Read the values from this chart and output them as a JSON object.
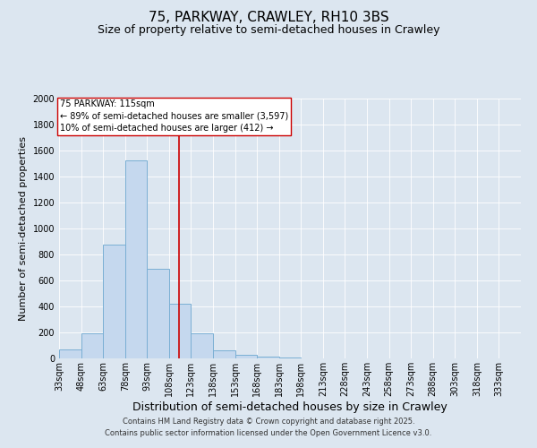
{
  "title": "75, PARKWAY, CRAWLEY, RH10 3BS",
  "subtitle": "Size of property relative to semi-detached houses in Crawley",
  "xlabel": "Distribution of semi-detached houses by size in Crawley",
  "ylabel": "Number of semi-detached properties",
  "bin_labels": [
    "33sqm",
    "48sqm",
    "63sqm",
    "78sqm",
    "93sqm",
    "108sqm",
    "123sqm",
    "138sqm",
    "153sqm",
    "168sqm",
    "183sqm",
    "198sqm",
    "213sqm",
    "228sqm",
    "243sqm",
    "258sqm",
    "273sqm",
    "288sqm",
    "303sqm",
    "318sqm",
    "333sqm"
  ],
  "bin_edges": [
    33,
    48,
    63,
    78,
    93,
    108,
    123,
    138,
    153,
    168,
    183,
    198,
    213,
    228,
    243,
    258,
    273,
    288,
    303,
    318,
    333,
    348
  ],
  "counts": [
    70,
    195,
    875,
    1525,
    690,
    420,
    195,
    60,
    30,
    15,
    10,
    0,
    0,
    0,
    0,
    0,
    0,
    0,
    0,
    0,
    0
  ],
  "bar_color": "#c5d8ee",
  "bar_edge_color": "#7aafd4",
  "property_size": 115,
  "vline_color": "#cc0000",
  "annotation_text": "75 PARKWAY: 115sqm\n← 89% of semi-detached houses are smaller (3,597)\n10% of semi-detached houses are larger (412) →",
  "annotation_box_color": "#ffffff",
  "annotation_box_edge": "#cc0000",
  "ylim": [
    0,
    2000
  ],
  "yticks": [
    0,
    200,
    400,
    600,
    800,
    1000,
    1200,
    1400,
    1600,
    1800,
    2000
  ],
  "background_color": "#dce6f0",
  "plot_bg_color": "#dce6f0",
  "grid_color": "#ffffff",
  "footer_line1": "Contains HM Land Registry data © Crown copyright and database right 2025.",
  "footer_line2": "Contains public sector information licensed under the Open Government Licence v3.0.",
  "title_fontsize": 11,
  "subtitle_fontsize": 9,
  "xlabel_fontsize": 9,
  "ylabel_fontsize": 8,
  "tick_fontsize": 7,
  "annotation_fontsize": 7,
  "footer_fontsize": 6
}
